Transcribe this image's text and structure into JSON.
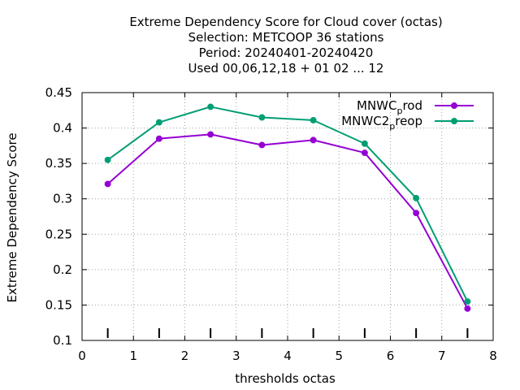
{
  "chart_data": {
    "type": "line",
    "title_lines": [
      "Extreme Dependency Score  for Cloud cover (octas)",
      "Selection: METCOOP     36 stations",
      "Period: 20240401-20240420",
      "Used  00,06,12,18 + 01 02 ... 12"
    ],
    "xlabel": "thresholds octas",
    "ylabel": "Extreme Dependency Score",
    "xlim": [
      0,
      8
    ],
    "ylim": [
      0.1,
      0.45
    ],
    "x_ticks": [
      "0",
      "1",
      "2",
      "3",
      "4",
      "5",
      "6",
      "7",
      "8"
    ],
    "y_ticks": [
      "0.1",
      "0.15",
      "0.2",
      "0.25",
      "0.3",
      "0.35",
      "0.4",
      "0.45"
    ],
    "grid": true,
    "legend_position": "top-right",
    "threshold_markers_x": [
      0.5,
      1.5,
      2.5,
      3.5,
      4.5,
      5.5,
      6.5,
      7.5
    ],
    "x": [
      0.5,
      1.5,
      2.5,
      3.5,
      4.5,
      5.5,
      6.5,
      7.5
    ],
    "series": [
      {
        "name": "MNWC_prod",
        "legend_main": "MNWC",
        "legend_sub": "p",
        "legend_tail": "rod",
        "color": "#9400d3",
        "values": [
          0.321,
          0.385,
          0.391,
          0.376,
          0.383,
          0.365,
          0.28,
          0.145
        ]
      },
      {
        "name": "MNWC2_preop",
        "legend_main": "MNWC2",
        "legend_sub": "p",
        "legend_tail": "reop",
        "color": "#009e73",
        "values": [
          0.355,
          0.408,
          0.43,
          0.415,
          0.411,
          0.378,
          0.301,
          0.155
        ]
      }
    ]
  }
}
